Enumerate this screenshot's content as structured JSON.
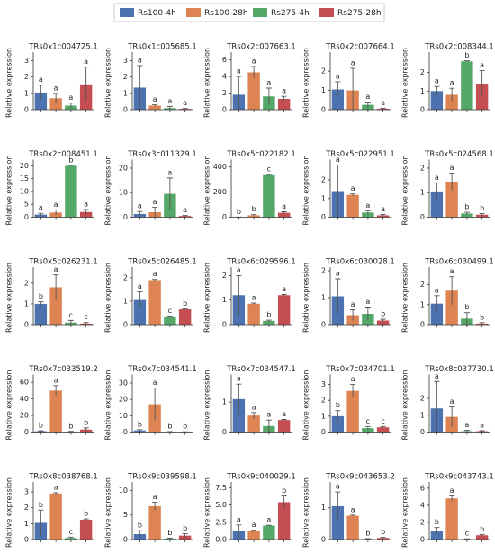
{
  "legend": [
    {
      "name": "Rs100-4h",
      "color": "#4c72b0"
    },
    {
      "name": "Rs100-28h",
      "color": "#dd8452"
    },
    {
      "name": "Rs275-4h",
      "color": "#55a868"
    },
    {
      "name": "Rs275-28h",
      "color": "#c44e52"
    }
  ],
  "chart_data": [
    {
      "type": "bar",
      "title": "TRs0x1c004725.1",
      "ylabel": "Relative expression",
      "values": [
        1.05,
        0.7,
        0.25,
        1.55
      ],
      "errors": [
        0.45,
        0.3,
        0.15,
        1.05
      ],
      "letters": [
        "a",
        "a",
        "a",
        "a"
      ],
      "ylim": [
        0,
        3.3
      ],
      "yticks": [
        0,
        1,
        2,
        3
      ]
    },
    {
      "type": "bar",
      "title": "TRs0x1c005685.1",
      "ylabel": "Relative expression",
      "values": [
        1.35,
        0.25,
        0.1,
        0.05
      ],
      "errors": [
        1.35,
        0.05,
        0.1,
        0.02
      ],
      "letters": [
        "a",
        "a",
        "a",
        "a"
      ],
      "ylim": [
        0,
        3.3
      ],
      "yticks": [
        0,
        1,
        2,
        3
      ]
    },
    {
      "type": "bar",
      "title": "TRs0x2c007663.1",
      "ylabel": "Relative expression",
      "values": [
        1.8,
        4.5,
        1.6,
        1.3
      ],
      "errors": [
        2.2,
        0.7,
        1.0,
        0.3
      ],
      "letters": [
        "a",
        "a",
        "a",
        "a"
      ],
      "ylim": [
        0,
        6.5
      ],
      "yticks": [
        0,
        2,
        4,
        6
      ]
    },
    {
      "type": "bar",
      "title": "TRs0x2c007664.1",
      "ylabel": "Relative expression",
      "values": [
        1.05,
        1.0,
        0.25,
        0.05
      ],
      "errors": [
        0.4,
        1.15,
        0.15,
        0.03
      ],
      "letters": [
        "a",
        "a",
        "a",
        "a"
      ],
      "ylim": [
        0,
        2.8
      ],
      "yticks": [
        0,
        1,
        2
      ]
    },
    {
      "type": "bar",
      "title": "TRs0x2c008344.1",
      "ylabel": "Relative expression",
      "values": [
        1.0,
        0.8,
        2.6,
        1.4
      ],
      "errors": [
        0.25,
        0.35,
        0.03,
        0.7
      ],
      "letters": [
        "a",
        "a",
        "b",
        "a"
      ],
      "ylim": [
        0,
        2.9
      ],
      "yticks": [
        0,
        1,
        2
      ]
    },
    {
      "type": "bar",
      "title": "TRs0x2c008451.1",
      "ylabel": "Relative expression",
      "values": [
        1.0,
        1.8,
        20,
        2.0
      ],
      "errors": [
        0.5,
        1.0,
        0.2,
        1.0
      ],
      "letters": [
        "a",
        "a",
        "b",
        "a"
      ],
      "ylim": [
        0,
        21
      ],
      "yticks": [
        0,
        5,
        10,
        15,
        20
      ]
    },
    {
      "type": "bar",
      "title": "TRs0x3c011329.1",
      "ylabel": "Relative expression",
      "values": [
        1.3,
        2.0,
        9.5,
        0.5
      ],
      "errors": [
        1.0,
        2.0,
        6.5,
        0.2
      ],
      "letters": [
        "a",
        "a",
        "a",
        "a"
      ],
      "ylim": [
        0,
        22
      ],
      "yticks": [
        0,
        10,
        20
      ]
    },
    {
      "type": "bar",
      "title": "TRs0x5c022182.1",
      "ylabel": "Relative expression",
      "values": [
        1,
        15,
        335,
        35
      ],
      "errors": [
        0.5,
        5,
        5,
        8
      ],
      "letters": [
        "b",
        "b",
        "c",
        "a"
      ],
      "ylim": [
        0,
        430
      ],
      "yticks": [
        0,
        200,
        400
      ]
    },
    {
      "type": "bar",
      "title": "TRs0x5c022951.1",
      "ylabel": "Relative expression",
      "values": [
        1.4,
        1.2,
        0.25,
        0.1
      ],
      "errors": [
        1.4,
        0.05,
        0.1,
        0.05
      ],
      "letters": [
        "a",
        "a",
        "a",
        "a"
      ],
      "ylim": [
        0,
        2.9
      ],
      "yticks": [
        0,
        1,
        2
      ]
    },
    {
      "type": "bar",
      "title": "TRs0x5c024568.1",
      "ylabel": "Relative expression",
      "values": [
        1.05,
        1.45,
        0.15,
        0.1
      ],
      "errors": [
        0.35,
        0.35,
        0.05,
        0.05
      ],
      "letters": [
        "a",
        "a",
        "b",
        "b"
      ],
      "ylim": [
        0,
        2.2
      ],
      "yticks": [
        0,
        1,
        2
      ]
    },
    {
      "type": "bar",
      "title": "TRs0x5c026231.1",
      "ylabel": "Relative expression",
      "values": [
        1.0,
        1.8,
        0.1,
        0.05
      ],
      "errors": [
        0.1,
        0.6,
        0.1,
        0.05
      ],
      "letters": [
        "b",
        "a",
        "c",
        "c"
      ],
      "ylim": [
        0,
        2.6
      ],
      "yticks": [
        0,
        1,
        2
      ]
    },
    {
      "type": "bar",
      "title": "TRs0x5c026485.1",
      "ylabel": "Relative expression",
      "values": [
        1.05,
        1.9,
        0.35,
        0.65
      ],
      "errors": [
        0.35,
        0.03,
        0.02,
        0.02
      ],
      "letters": [
        "a",
        "a",
        "c",
        "b"
      ],
      "ylim": [
        0,
        2.3
      ],
      "yticks": [
        0,
        1,
        2
      ]
    },
    {
      "type": "bar",
      "title": "TRs0x6c029596.1",
      "ylabel": "Relative expression",
      "values": [
        1.2,
        0.85,
        0.15,
        1.2
      ],
      "errors": [
        0.8,
        0.03,
        0.03,
        0.03
      ],
      "letters": [
        "a",
        "a",
        "b",
        "a"
      ],
      "ylim": [
        0,
        2.2
      ],
      "yticks": [
        0,
        1,
        2
      ]
    },
    {
      "type": "bar",
      "title": "TRs0x6c030028.1",
      "ylabel": "Relative expression",
      "values": [
        1.05,
        0.35,
        0.4,
        0.15
      ],
      "errors": [
        0.65,
        0.2,
        0.25,
        0.05
      ],
      "letters": [
        "a",
        "a",
        "a",
        "b"
      ],
      "ylim": [
        0,
        2.0
      ],
      "yticks": [
        0,
        1,
        2
      ]
    },
    {
      "type": "bar",
      "title": "TRs0x6c030499.1",
      "ylabel": "Relative expression",
      "values": [
        1.05,
        1.7,
        0.3,
        0.05
      ],
      "errors": [
        0.4,
        0.7,
        0.3,
        0.05
      ],
      "letters": [
        "a",
        "a",
        "b",
        "b"
      ],
      "ylim": [
        0,
        2.7
      ],
      "yticks": [
        0,
        1,
        2
      ]
    },
    {
      "type": "bar",
      "title": "TRs0x7c033519.2",
      "ylabel": "Relative expression",
      "values": [
        1,
        50,
        0.5,
        3
      ],
      "errors": [
        0.5,
        6,
        0.3,
        2
      ],
      "letters": [
        "b",
        "a",
        "b",
        "b"
      ],
      "ylim": [
        0,
        65
      ],
      "yticks": [
        0,
        20,
        40,
        60
      ]
    },
    {
      "type": "bar",
      "title": "TRs0x7c034541.1",
      "ylabel": "Relative expression",
      "values": [
        1,
        17,
        0.2,
        0.1
      ],
      "errors": [
        0.5,
        10,
        0.1,
        0.05
      ],
      "letters": [
        "b",
        "a",
        "b",
        "b"
      ],
      "ylim": [
        0,
        33
      ],
      "yticks": [
        0,
        10,
        20,
        30
      ]
    },
    {
      "type": "bar",
      "title": "TRs0x7c034547.1",
      "ylabel": "Relative expression",
      "values": [
        1.1,
        0.55,
        0.2,
        0.4
      ],
      "errors": [
        0.5,
        0.1,
        0.2,
        0.02
      ],
      "letters": [
        "a",
        "a",
        "a",
        "a"
      ],
      "ylim": [
        0,
        1.8
      ],
      "yticks": [
        0,
        1
      ]
    },
    {
      "type": "bar",
      "title": "TRs0x7c034701.1",
      "ylabel": "Relative expression",
      "values": [
        1.0,
        2.6,
        0.25,
        0.3
      ],
      "errors": [
        0.35,
        0.4,
        0.1,
        0.05
      ],
      "letters": [
        "b",
        "a",
        "c",
        "c"
      ],
      "ylim": [
        0,
        3.4
      ],
      "yticks": [
        0,
        1,
        2,
        3
      ]
    },
    {
      "type": "bar",
      "title": "TRs0x8c037730.1",
      "ylabel": "Relative expression",
      "values": [
        1.4,
        0.9,
        0.05,
        0.05
      ],
      "errors": [
        1.6,
        0.6,
        0.05,
        0.03
      ],
      "letters": [
        "a",
        "a",
        "a",
        "a"
      ],
      "ylim": [
        0,
        3.2
      ],
      "yticks": [
        0,
        1,
        2
      ]
    },
    {
      "type": "bar",
      "title": "TRs0x8c038768.1",
      "ylabel": "Relative expression",
      "values": [
        1.05,
        2.9,
        0.1,
        1.25
      ],
      "errors": [
        0.8,
        0.05,
        0.05,
        0.05
      ],
      "letters": [
        "b",
        "a",
        "c",
        "b"
      ],
      "ylim": [
        0,
        3.4
      ],
      "yticks": [
        0,
        1,
        2,
        3
      ]
    },
    {
      "type": "bar",
      "title": "TRs0x9c039598.1",
      "ylabel": "Relative expression",
      "values": [
        1.1,
        6.8,
        0.2,
        0.8
      ],
      "errors": [
        0.7,
        0.8,
        0.1,
        0.4
      ],
      "letters": [
        "b",
        "a",
        "b",
        "b"
      ],
      "ylim": [
        0,
        11
      ],
      "yticks": [
        0,
        5,
        10
      ]
    },
    {
      "type": "bar",
      "title": "TRs0x9c040029.1",
      "ylabel": "Relative expression",
      "values": [
        1.2,
        1.3,
        2.0,
        5.4
      ],
      "errors": [
        0.9,
        0.05,
        0.05,
        0.9
      ],
      "letters": [
        "a",
        "a",
        "a",
        "b"
      ],
      "ylim": [
        0,
        7.8
      ],
      "yticks": [
        {
          "value": 0,
          "label": "0.0"
        },
        {
          "value": 2.5,
          "label": "2.5"
        },
        {
          "value": 5,
          "label": "5.0"
        },
        {
          "value": 7.5,
          "label": "7.5"
        }
      ]
    },
    {
      "type": "bar",
      "title": "TRs0x9c043653.2",
      "ylabel": "Relative expression",
      "values": [
        1.05,
        0.75,
        0.02,
        0.05
      ],
      "errors": [
        0.45,
        0.02,
        0.01,
        0.02
      ],
      "letters": [
        "a",
        "a",
        "b",
        "b"
      ],
      "ylim": [
        0,
        1.7
      ],
      "yticks": [
        0,
        1
      ]
    },
    {
      "type": "bar",
      "title": "TRs0x9c043743.1",
      "ylabel": "Relative expression",
      "values": [
        1.0,
        4.8,
        0.05,
        0.5
      ],
      "errors": [
        0.4,
        0.3,
        0.03,
        0.1
      ],
      "letters": [
        "b",
        "a",
        "c",
        "b"
      ],
      "ylim": [
        0,
        6.3
      ],
      "yticks": [
        0,
        2,
        4,
        6
      ]
    }
  ]
}
